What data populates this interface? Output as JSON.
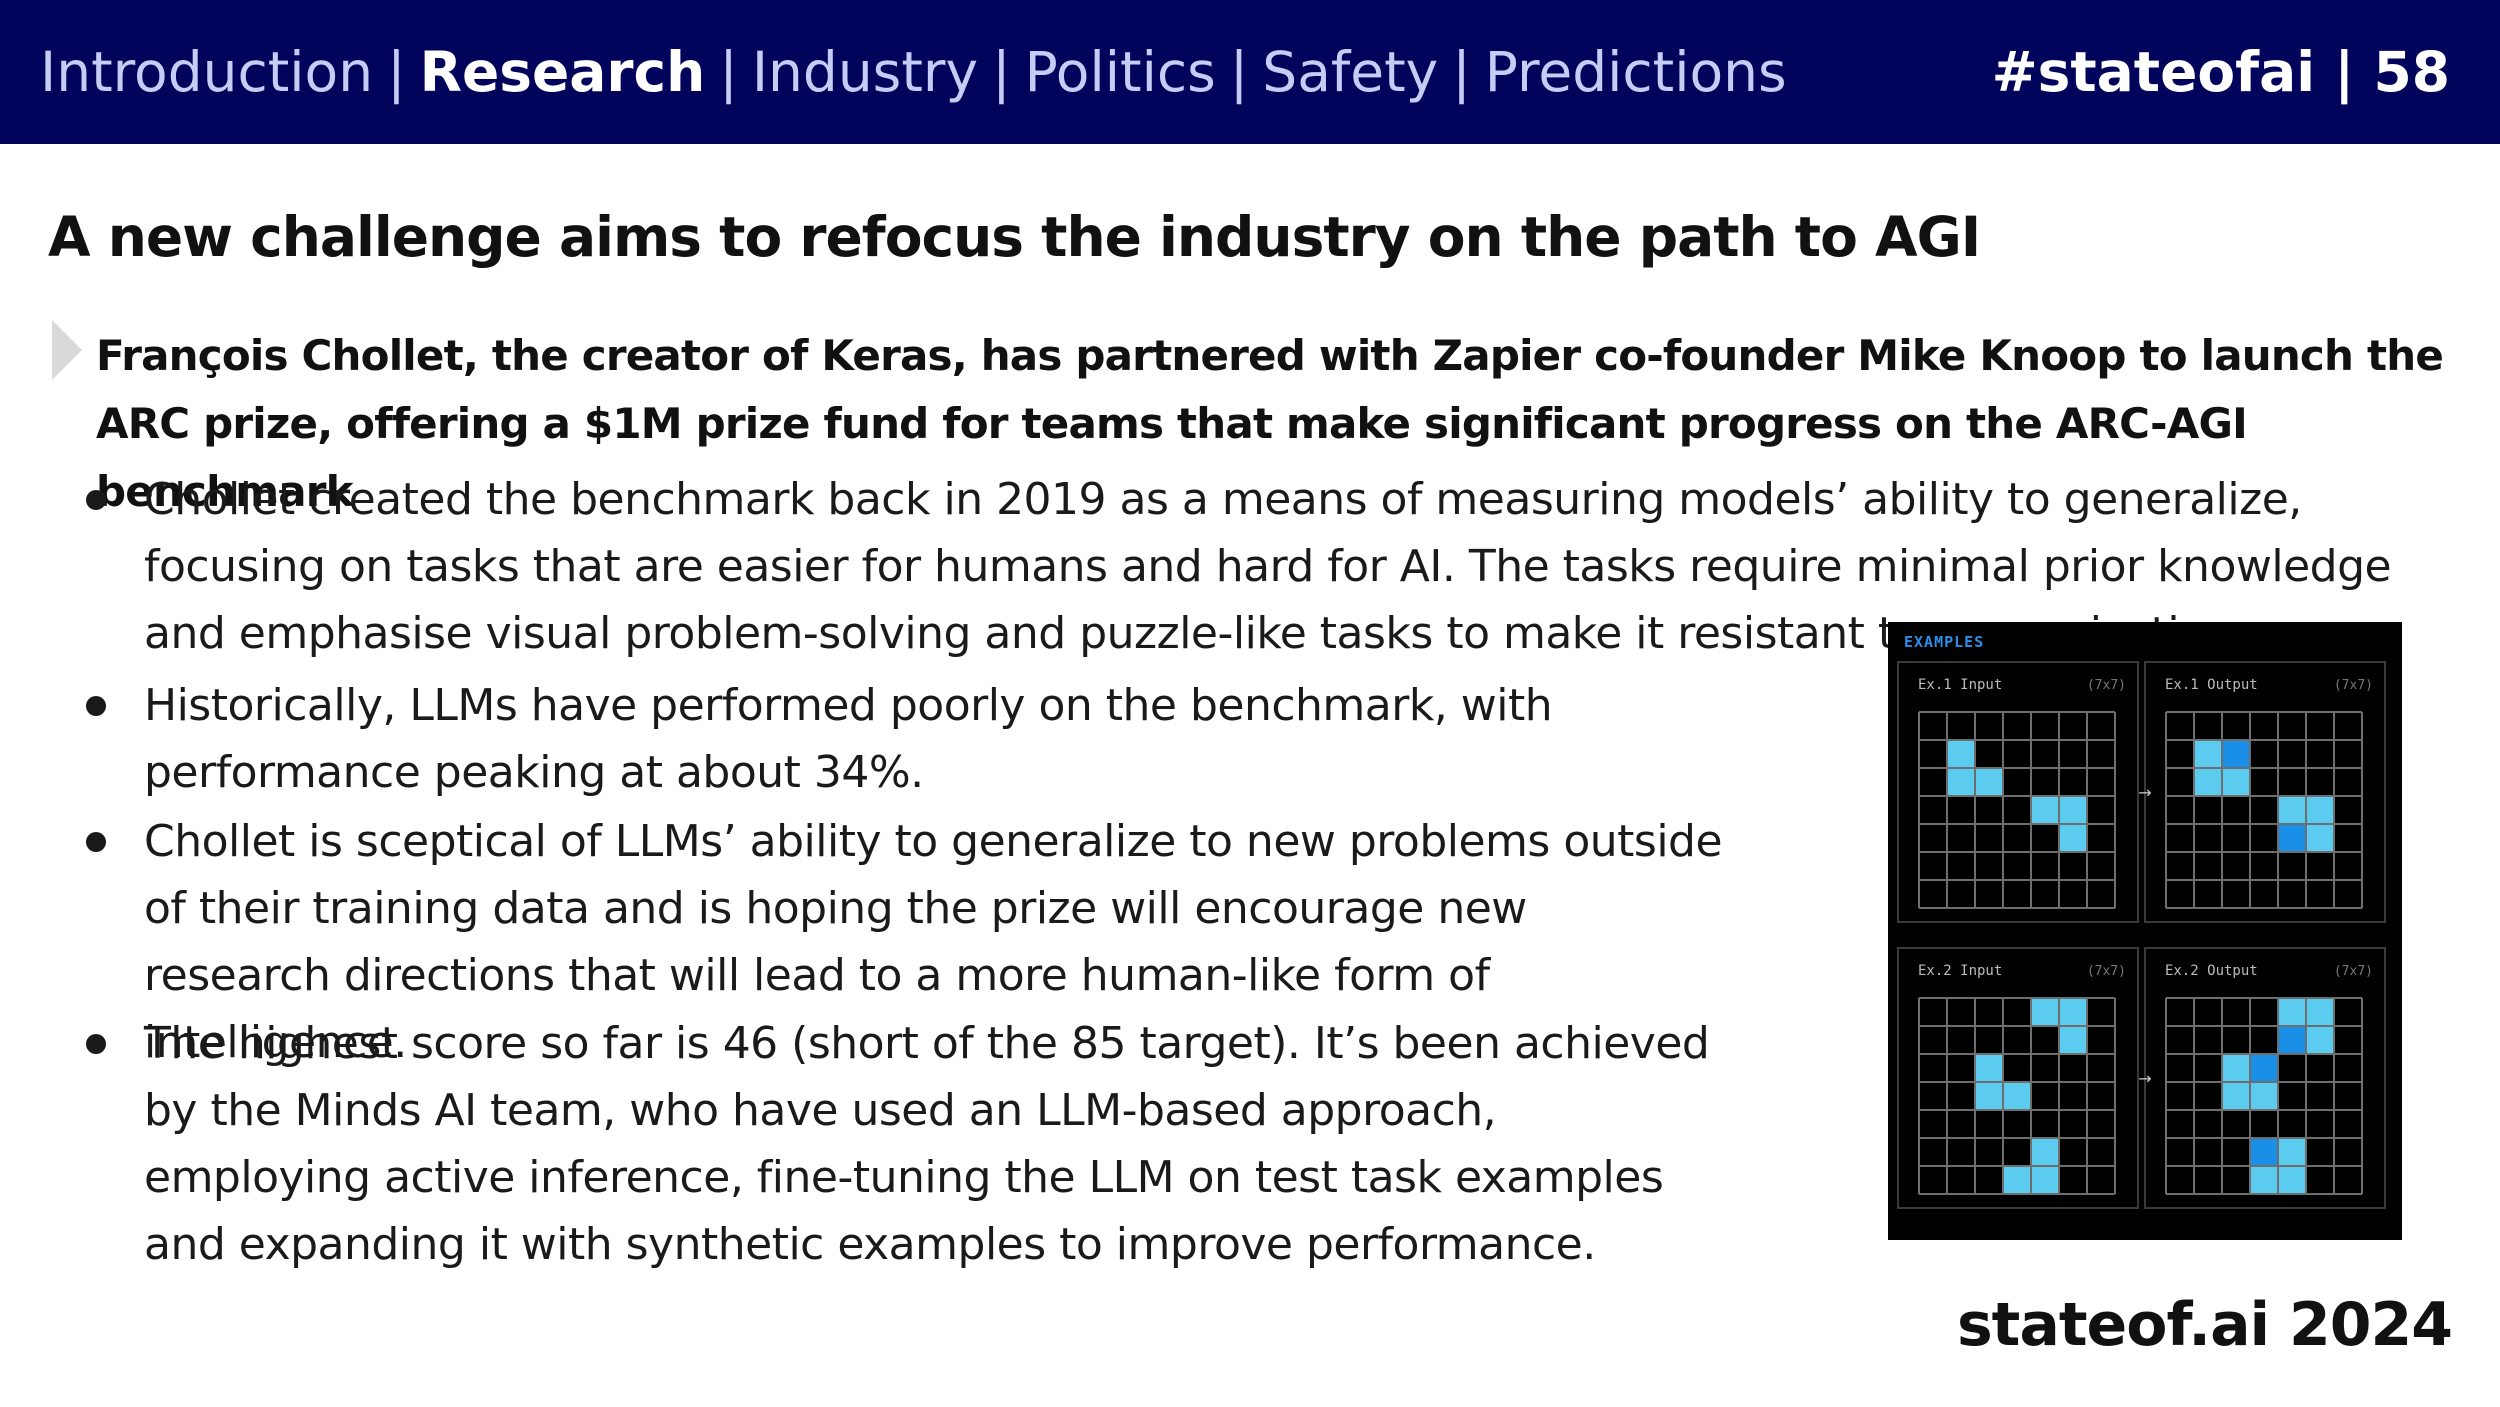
{
  "header": {
    "nav": [
      {
        "label": "Introduction",
        "active": false
      },
      {
        "label": "Research",
        "active": true
      },
      {
        "label": "Industry",
        "active": false
      },
      {
        "label": "Politics",
        "active": false
      },
      {
        "label": "Safety",
        "active": false
      },
      {
        "label": "Predictions",
        "active": false
      }
    ],
    "separator": "|",
    "slide_tag": "#stateofai | 58"
  },
  "title": "A new challenge aims to refocus the industry on the path to AGI",
  "lead": "François Chollet, the creator of Keras, has partnered with Zapier co-founder Mike Knoop to launch the ARC prize, offering a $1M prize fund for teams that make significant progress on the ARC-AGI benchmark",
  "bullets": [
    "Chollet created the benchmark back in 2019 as a means of measuring models’ ability to generalize, focusing on tasks that are easier for humans and hard for AI. The tasks require minimal prior knowledge and emphasise visual problem-solving and puzzle-like tasks to make it resistant to memorization.",
    "Historically, LLMs have performed poorly on the benchmark, with performance peaking at about 34%.",
    "Chollet is sceptical of LLMs’ ability to generalize to new problems outside of their training data and is hoping the prize will encourage new research directions that will lead to a more human-like form of intelligence.",
    "The highest score so far is 46 (short of the 85 target). It’s been achieved by the Minds AI team, who have used an LLM-based approach, employing active inference, fine-tuning the LLM on test task examples and expanding it with synthetic examples to improve performance."
  ],
  "figure": {
    "heading": "EXAMPLES",
    "arrow": "→",
    "colors": {
      "light": "#5ccbf0",
      "dark": "#1a8fe8",
      "grid": "#6e6e6e",
      "panel_border": "#3a3a3a",
      "heading": "#2d8ee8",
      "label": "#bbbbbb"
    },
    "examples": [
      {
        "input_label": "Ex.1 Input",
        "input_size": "(7x7)",
        "output_label": "Ex.1 Output",
        "output_size": "(7x7)",
        "input_cells": [
          [
            1,
            1,
            "l"
          ],
          [
            2,
            1,
            "l"
          ],
          [
            2,
            2,
            "l"
          ],
          [
            3,
            4,
            "l"
          ],
          [
            3,
            5,
            "l"
          ],
          [
            4,
            5,
            "l"
          ]
        ],
        "output_cells": [
          [
            1,
            1,
            "l"
          ],
          [
            1,
            2,
            "d"
          ],
          [
            2,
            1,
            "l"
          ],
          [
            2,
            2,
            "l"
          ],
          [
            3,
            4,
            "l"
          ],
          [
            3,
            5,
            "l"
          ],
          [
            4,
            4,
            "d"
          ],
          [
            4,
            5,
            "l"
          ]
        ]
      },
      {
        "input_label": "Ex.2 Input",
        "input_size": "(7x7)",
        "output_label": "Ex.2 Output",
        "output_size": "(7x7)",
        "input_cells": [
          [
            0,
            4,
            "l"
          ],
          [
            0,
            5,
            "l"
          ],
          [
            1,
            5,
            "l"
          ],
          [
            2,
            2,
            "l"
          ],
          [
            3,
            2,
            "l"
          ],
          [
            3,
            3,
            "l"
          ],
          [
            5,
            4,
            "l"
          ],
          [
            6,
            3,
            "l"
          ],
          [
            6,
            4,
            "l"
          ]
        ],
        "output_cells": [
          [
            0,
            4,
            "l"
          ],
          [
            0,
            5,
            "l"
          ],
          [
            1,
            4,
            "d"
          ],
          [
            1,
            5,
            "l"
          ],
          [
            2,
            2,
            "l"
          ],
          [
            2,
            3,
            "d"
          ],
          [
            3,
            2,
            "l"
          ],
          [
            3,
            3,
            "l"
          ],
          [
            5,
            3,
            "d"
          ],
          [
            5,
            4,
            "l"
          ],
          [
            6,
            3,
            "l"
          ],
          [
            6,
            4,
            "l"
          ]
        ]
      }
    ]
  },
  "footer": "stateof.ai 2024"
}
